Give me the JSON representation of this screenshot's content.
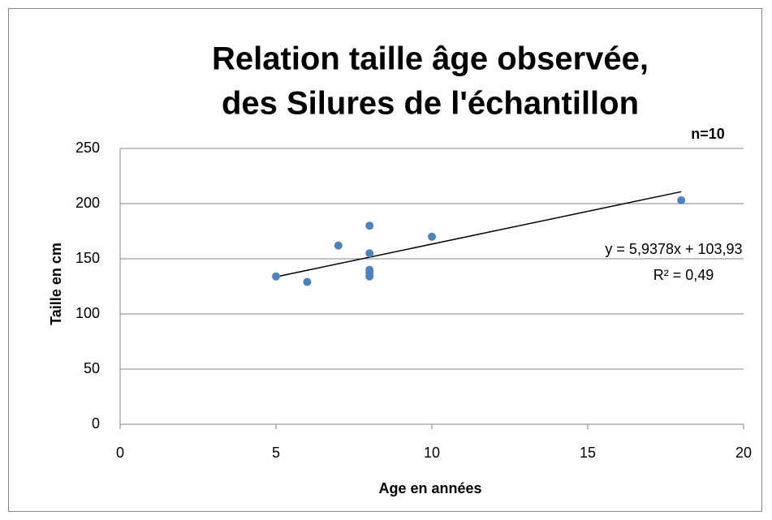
{
  "chart_data": {
    "type": "scatter",
    "title": [
      "Relation taille âge observée,",
      "des Silures de l'échantillon"
    ],
    "annotation": "n=10",
    "x_label": "Age en années",
    "y_label": "Taille en cm",
    "x": [
      5,
      6,
      7,
      8,
      8,
      8,
      8,
      8,
      10,
      18
    ],
    "series": [
      {
        "name": "Taille",
        "color": "#4f81bd",
        "values": [
          134,
          129,
          162,
          180,
          155,
          140,
          137,
          134,
          170,
          203
        ]
      }
    ],
    "trendline": {
      "slope": 5.9378,
      "intercept": 103.93,
      "equation": "y = 5,9378x + 103,93",
      "r2": "R² = 0,49"
    },
    "xlim": [
      0,
      20
    ],
    "xticks": [
      0,
      5,
      10,
      15,
      20
    ],
    "ylim": [
      0,
      250
    ],
    "yticks": [
      0,
      50,
      100,
      150,
      200,
      250
    ],
    "grid": true
  }
}
